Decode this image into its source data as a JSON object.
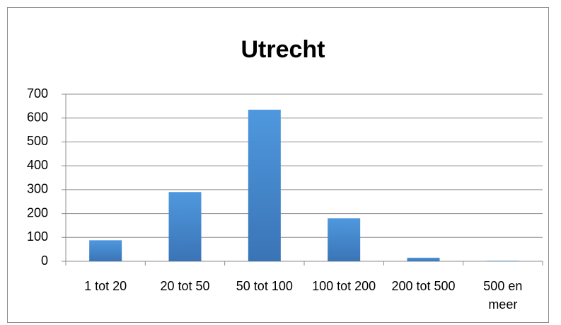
{
  "chart_data": {
    "type": "bar",
    "title": "Utrecht",
    "categories": [
      "1 tot 20",
      "20 tot 50",
      "50 tot 100",
      "100 tot 200",
      "200 tot 500",
      "500 en meer"
    ],
    "values": [
      88,
      290,
      635,
      180,
      15,
      2
    ],
    "color": "#4a8fd4",
    "ylim": [
      0,
      700
    ],
    "yticks": [
      0,
      100,
      200,
      300,
      400,
      500,
      600,
      700
    ],
    "grid": true
  }
}
